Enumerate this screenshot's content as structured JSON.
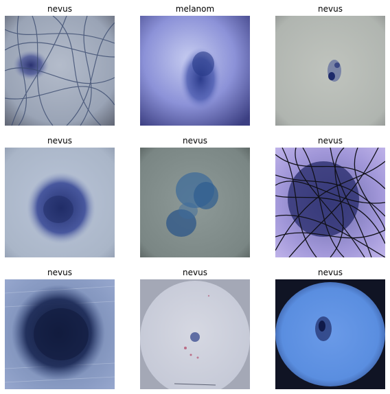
{
  "grid": {
    "images": [
      {
        "label": "nevus"
      },
      {
        "label": "melanom"
      },
      {
        "label": "nevus"
      },
      {
        "label": "nevus"
      },
      {
        "label": "nevus"
      },
      {
        "label": "nevus"
      },
      {
        "label": "nevus"
      },
      {
        "label": "nevus"
      },
      {
        "label": "nevus"
      }
    ]
  }
}
